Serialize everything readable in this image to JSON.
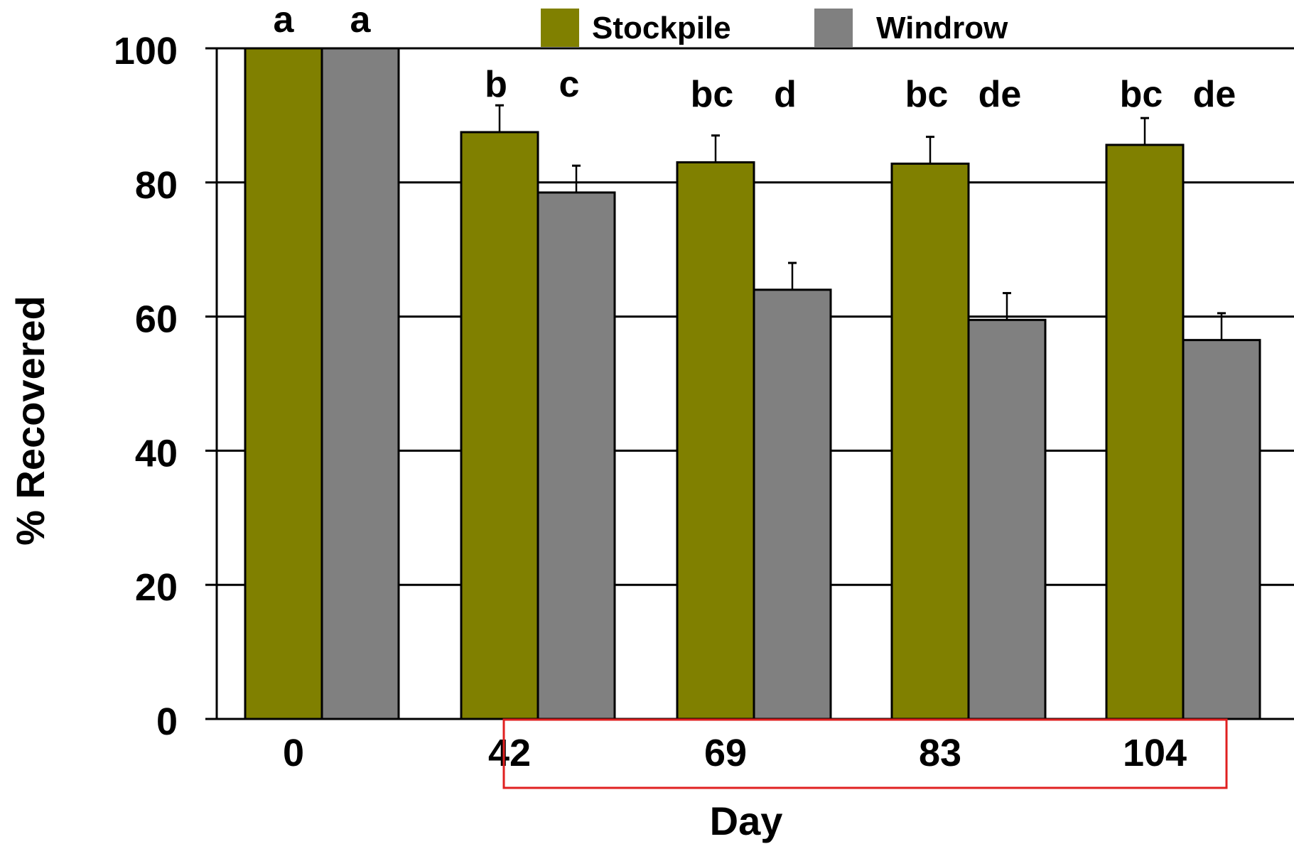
{
  "chart_data": {
    "type": "bar",
    "categories": [
      "0",
      "42",
      "69",
      "83",
      "104"
    ],
    "series": [
      {
        "name": "Stockpile",
        "color": "#808000",
        "values": [
          100,
          87.5,
          83,
          82.8,
          85.6
        ],
        "errors": [
          0,
          4,
          4,
          4,
          4
        ],
        "letters": [
          "a",
          "b",
          "bc",
          "bc",
          "bc"
        ]
      },
      {
        "name": "Windrow",
        "color": "#808080",
        "values": [
          100,
          78.5,
          64,
          59.5,
          56.5
        ],
        "errors": [
          0,
          4,
          4,
          4,
          4
        ],
        "letters": [
          "a",
          "c",
          "d",
          "de",
          "de"
        ]
      }
    ],
    "xlabel": "Day",
    "ylabel": "% Recovered",
    "ylim": [
      0,
      100
    ],
    "yticks": [
      0,
      20,
      40,
      60,
      80,
      100
    ],
    "grid": true,
    "legend": "top",
    "highlight_box_color": "#e02020"
  }
}
